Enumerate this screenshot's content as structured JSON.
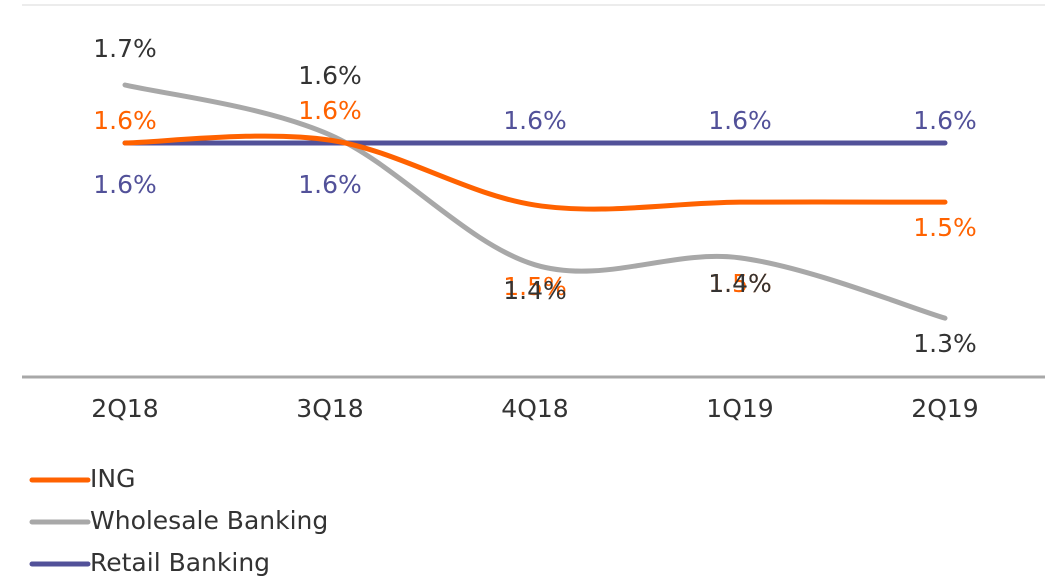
{
  "chart_data": {
    "type": "line",
    "categories": [
      "2Q18",
      "3Q18",
      "4Q18",
      "1Q19",
      "2Q19"
    ],
    "series": [
      {
        "name": "ING",
        "color": "#ff6200",
        "values": [
          1.58,
          1.585,
          1.473,
          1.478,
          1.478
        ],
        "value_labels": [
          "1.6%",
          "1.6%",
          "1.5%",
          "1.5%",
          "1.5%"
        ]
      },
      {
        "name": "Wholesale Banking",
        "color": "#a8a8a8",
        "values": [
          1.68,
          1.594,
          1.37,
          1.382,
          1.278
        ],
        "value_labels": [
          "1.7%",
          "1.6%",
          "1.4%",
          "1.4%",
          "1.3%"
        ]
      },
      {
        "name": "Retail Banking",
        "color": "#525199",
        "values": [
          1.58,
          1.58,
          1.58,
          1.58,
          1.58
        ],
        "value_labels": [
          "1.6%",
          "1.6%",
          "1.6%",
          "1.6%",
          "1.6%"
        ]
      }
    ],
    "ylim": [
      1.2,
      1.8
    ]
  }
}
